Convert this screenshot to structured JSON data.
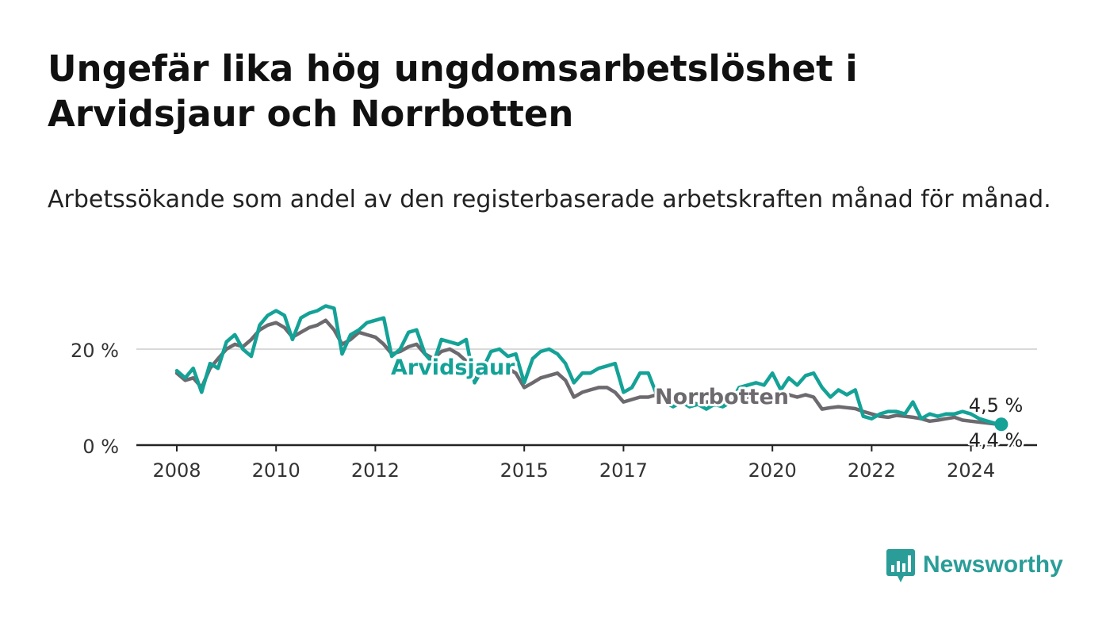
{
  "title": "Ungefär lika hög ungdomsarbetslöshet i Arvidsjaur och Norrbotten",
  "subtitle": "Arbetssökande som andel av den registerbaserade arbetskraften månad för månad.",
  "brand": {
    "name": "Newsworthy",
    "color": "#2a9d98"
  },
  "chart_data": {
    "type": "line",
    "xlabel": "",
    "ylabel": "",
    "xlim": [
      2008,
      2025.5
    ],
    "ylim": [
      0,
      30
    ],
    "x_ticks": [
      2008,
      2010,
      2012,
      2015,
      2017,
      2020,
      2022,
      2024
    ],
    "y_ticks": [
      {
        "value": 0,
        "label": "0 %"
      },
      {
        "value": 20,
        "label": "20 %"
      }
    ],
    "grid": "horizontal",
    "legend": "direct labels on lines",
    "series": [
      {
        "name": "Norrbotten",
        "color": "#6d6a6f",
        "end_label": "4,4 %",
        "x": [
          2008.0,
          2008.17,
          2008.33,
          2008.5,
          2008.67,
          2008.83,
          2009.0,
          2009.17,
          2009.33,
          2009.5,
          2009.67,
          2009.83,
          2010.0,
          2010.17,
          2010.33,
          2010.5,
          2010.67,
          2010.83,
          2011.0,
          2011.17,
          2011.33,
          2011.5,
          2011.67,
          2011.83,
          2012.0,
          2012.17,
          2012.33,
          2012.5,
          2012.67,
          2012.83,
          2013.0,
          2013.17,
          2013.33,
          2013.5,
          2013.67,
          2013.83,
          2014.0,
          2014.17,
          2014.33,
          2014.5,
          2014.67,
          2014.83,
          2015.0,
          2015.17,
          2015.33,
          2015.5,
          2015.67,
          2015.83,
          2016.0,
          2016.17,
          2016.33,
          2016.5,
          2016.67,
          2016.83,
          2017.0,
          2017.17,
          2017.33,
          2017.5,
          2017.67,
          2017.83,
          2018.0,
          2018.17,
          2018.33,
          2018.5,
          2018.67,
          2018.83,
          2019.0,
          2019.17,
          2019.33,
          2019.5,
          2019.67,
          2019.83,
          2020.0,
          2020.17,
          2020.33,
          2020.5,
          2020.67,
          2020.83,
          2021.0,
          2021.17,
          2021.33,
          2021.5,
          2021.67,
          2021.83,
          2022.0,
          2022.17,
          2022.33,
          2022.5,
          2022.67,
          2022.83,
          2023.0,
          2023.17,
          2023.33,
          2023.5,
          2023.67,
          2023.83,
          2024.0,
          2024.17,
          2024.33,
          2024.5
        ],
        "y": [
          15.0,
          13.5,
          14.0,
          12.0,
          16.0,
          18.0,
          20.0,
          21.0,
          20.5,
          22.0,
          24.0,
          25.0,
          25.5,
          24.5,
          22.5,
          23.5,
          24.5,
          25.0,
          26.0,
          24.0,
          21.0,
          22.0,
          23.5,
          23.0,
          22.5,
          21.0,
          19.0,
          19.5,
          20.5,
          21.0,
          19.0,
          18.0,
          19.5,
          20.0,
          19.0,
          17.5,
          14.0,
          15.5,
          17.0,
          16.5,
          16.0,
          15.0,
          12.0,
          13.0,
          14.0,
          14.5,
          15.0,
          13.5,
          10.0,
          11.0,
          11.5,
          12.0,
          12.0,
          11.0,
          9.0,
          9.5,
          10.0,
          10.0,
          10.5,
          9.5,
          9.0,
          9.5,
          9.0,
          8.5,
          9.0,
          9.0,
          8.5,
          9.0,
          9.5,
          10.0,
          10.5,
          10.0,
          10.5,
          11.0,
          10.5,
          10.0,
          10.5,
          10.0,
          7.5,
          7.8,
          8.0,
          7.8,
          7.6,
          7.0,
          6.5,
          6.0,
          5.8,
          6.2,
          6.0,
          5.8,
          5.5,
          5.0,
          5.2,
          5.5,
          5.8,
          5.2,
          5.0,
          4.8,
          4.6,
          4.4
        ]
      },
      {
        "name": "Arvidsjaur",
        "color": "#14a297",
        "end_label": "4,5 %",
        "x": [
          2008.0,
          2008.17,
          2008.33,
          2008.5,
          2008.67,
          2008.83,
          2009.0,
          2009.17,
          2009.33,
          2009.5,
          2009.67,
          2009.83,
          2010.0,
          2010.17,
          2010.33,
          2010.5,
          2010.67,
          2010.83,
          2011.0,
          2011.17,
          2011.33,
          2011.5,
          2011.67,
          2011.83,
          2012.0,
          2012.17,
          2012.33,
          2012.5,
          2012.67,
          2012.83,
          2013.0,
          2013.17,
          2013.33,
          2013.5,
          2013.67,
          2013.83,
          2014.0,
          2014.17,
          2014.33,
          2014.5,
          2014.67,
          2014.83,
          2015.0,
          2015.17,
          2015.33,
          2015.5,
          2015.67,
          2015.83,
          2016.0,
          2016.17,
          2016.33,
          2016.5,
          2016.67,
          2016.83,
          2017.0,
          2017.17,
          2017.33,
          2017.5,
          2017.67,
          2017.83,
          2018.0,
          2018.17,
          2018.33,
          2018.5,
          2018.67,
          2018.83,
          2019.0,
          2019.17,
          2019.33,
          2019.5,
          2019.67,
          2019.83,
          2020.0,
          2020.17,
          2020.33,
          2020.5,
          2020.67,
          2020.83,
          2021.0,
          2021.17,
          2021.33,
          2021.5,
          2021.67,
          2021.83,
          2022.0,
          2022.17,
          2022.33,
          2022.5,
          2022.67,
          2022.83,
          2023.0,
          2023.17,
          2023.33,
          2023.5,
          2023.67,
          2023.83,
          2024.0,
          2024.17,
          2024.33,
          2024.5
        ],
        "y": [
          15.5,
          14.0,
          16.0,
          11.0,
          17.0,
          16.0,
          21.5,
          23.0,
          20.0,
          18.5,
          25.0,
          27.0,
          28.0,
          27.0,
          22.0,
          26.5,
          27.5,
          28.0,
          29.0,
          28.5,
          19.0,
          23.0,
          24.0,
          25.5,
          26.0,
          26.5,
          18.5,
          20.0,
          23.5,
          24.0,
          19.0,
          17.0,
          22.0,
          21.5,
          21.0,
          22.0,
          13.0,
          16.0,
          19.5,
          20.0,
          18.5,
          19.0,
          13.0,
          18.0,
          19.5,
          20.0,
          19.0,
          17.0,
          13.0,
          15.0,
          15.0,
          16.0,
          16.5,
          17.0,
          11.0,
          12.0,
          15.0,
          15.0,
          10.5,
          9.0,
          8.0,
          9.0,
          8.0,
          8.5,
          7.5,
          8.5,
          8.0,
          9.0,
          12.0,
          12.5,
          13.0,
          12.5,
          15.0,
          11.5,
          14.0,
          12.5,
          14.5,
          15.0,
          12.0,
          10.0,
          11.5,
          10.5,
          11.5,
          6.0,
          5.5,
          6.5,
          7.0,
          7.0,
          6.5,
          9.0,
          5.5,
          6.5,
          6.0,
          6.5,
          6.5,
          7.0,
          6.5,
          5.5,
          5.0,
          4.5
        ]
      }
    ]
  }
}
